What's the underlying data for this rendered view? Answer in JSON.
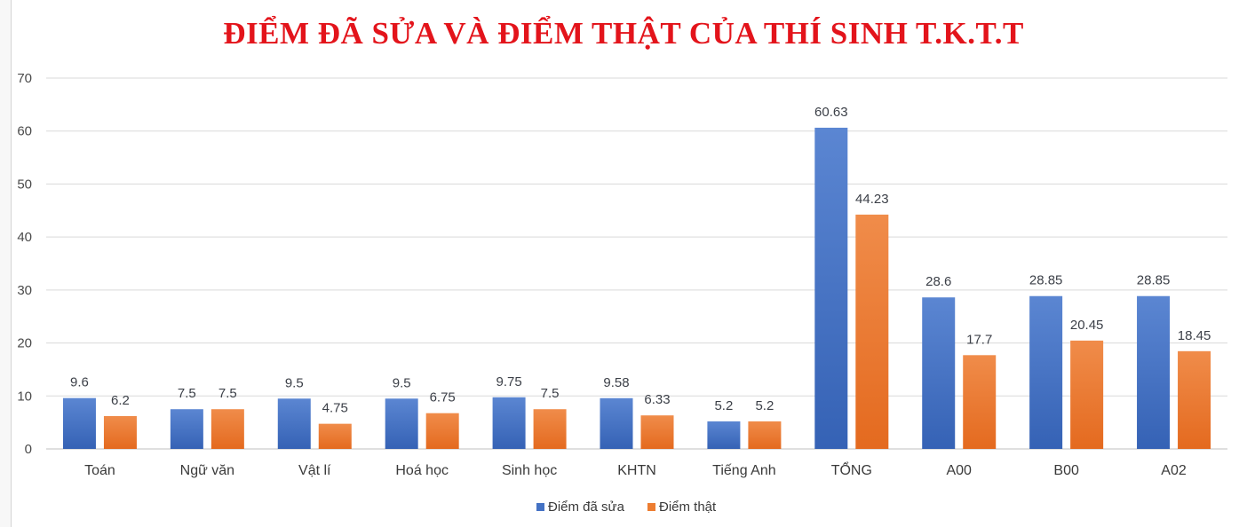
{
  "chart_data": {
    "type": "bar",
    "title": "ĐIỂM ĐÃ SỬA VÀ ĐIỂM THẬT CỦA THÍ SINH T.K.T.T",
    "categories": [
      "Toán",
      "Ngữ văn",
      "Vật lí",
      "Hoá học",
      "Sinh học",
      "KHTN",
      "Tiếng Anh",
      "TỔNG",
      "A00",
      "B00",
      "A02"
    ],
    "series": [
      {
        "name": "Điểm đã sửa",
        "color": "#4472c4",
        "values": [
          9.6,
          7.5,
          9.5,
          9.5,
          9.75,
          9.58,
          5.2,
          60.63,
          28.6,
          28.85,
          28.85
        ]
      },
      {
        "name": "Điểm thật",
        "color": "#ed7d31",
        "values": [
          6.2,
          7.5,
          4.75,
          6.75,
          7.5,
          6.33,
          5.2,
          44.23,
          17.7,
          20.45,
          18.45
        ]
      }
    ],
    "ylim": [
      0,
      70
    ],
    "yticks": [
      0,
      10,
      20,
      30,
      40,
      50,
      60,
      70
    ],
    "grid": true,
    "legend_position": "bottom",
    "show_data_labels": true
  }
}
